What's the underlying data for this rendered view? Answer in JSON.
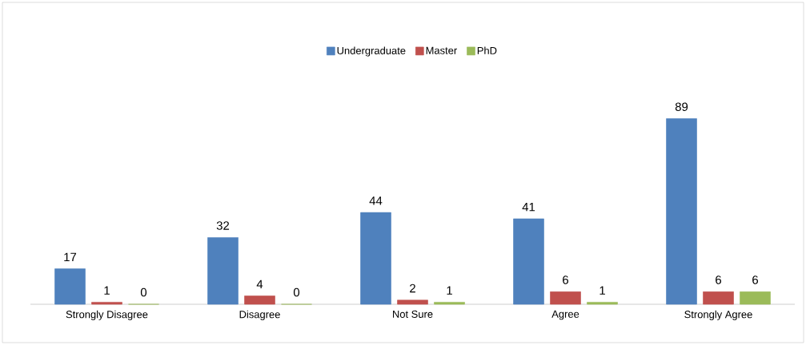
{
  "chart_data": {
    "type": "bar",
    "categories": [
      "Strongly Disagree",
      "Disagree",
      "Not Sure",
      "Agree",
      "Strongly Agree"
    ],
    "series": [
      {
        "name": "Undergraduate",
        "color": "#4f81bd",
        "values": [
          17,
          32,
          44,
          41,
          89
        ]
      },
      {
        "name": "Master",
        "color": "#c0504d",
        "values": [
          1,
          4,
          2,
          6,
          6
        ]
      },
      {
        "name": "PhD",
        "color": "#9bbb59",
        "values": [
          0,
          0,
          1,
          1,
          6
        ]
      }
    ],
    "data_labels": true,
    "legend": "top"
  }
}
